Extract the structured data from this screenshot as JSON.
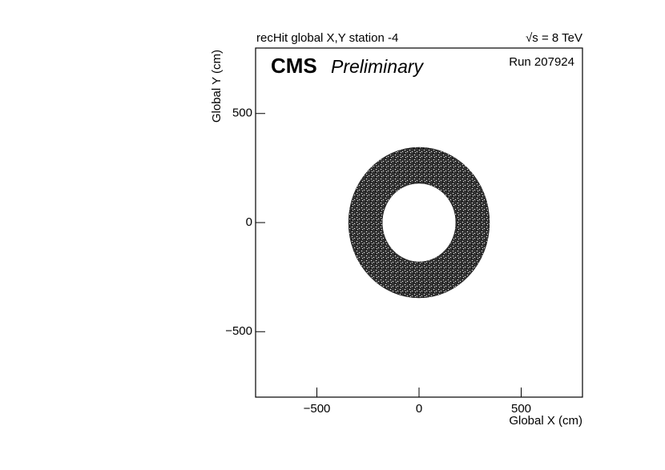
{
  "chart_data": {
    "type": "ring",
    "title": "recHit global X,Y station -4",
    "energy_label": "√s = 8 TeV",
    "experiment": "CMS",
    "status": "Preliminary",
    "run_label": "Run 207924",
    "x_label": "Global X (cm)",
    "y_label": "Global Y (cm)",
    "ring": {
      "center": [
        0,
        0
      ],
      "r_inner": 180,
      "r_outer": 345,
      "color": "#111111"
    },
    "xlim": [
      -800,
      800
    ],
    "ylim": [
      -800,
      800
    ],
    "xticks": [
      {
        "value": -500,
        "label": "−500"
      },
      0,
      500
    ],
    "yticks": [
      {
        "value": -500,
        "label": "−500"
      },
      0,
      500
    ]
  }
}
